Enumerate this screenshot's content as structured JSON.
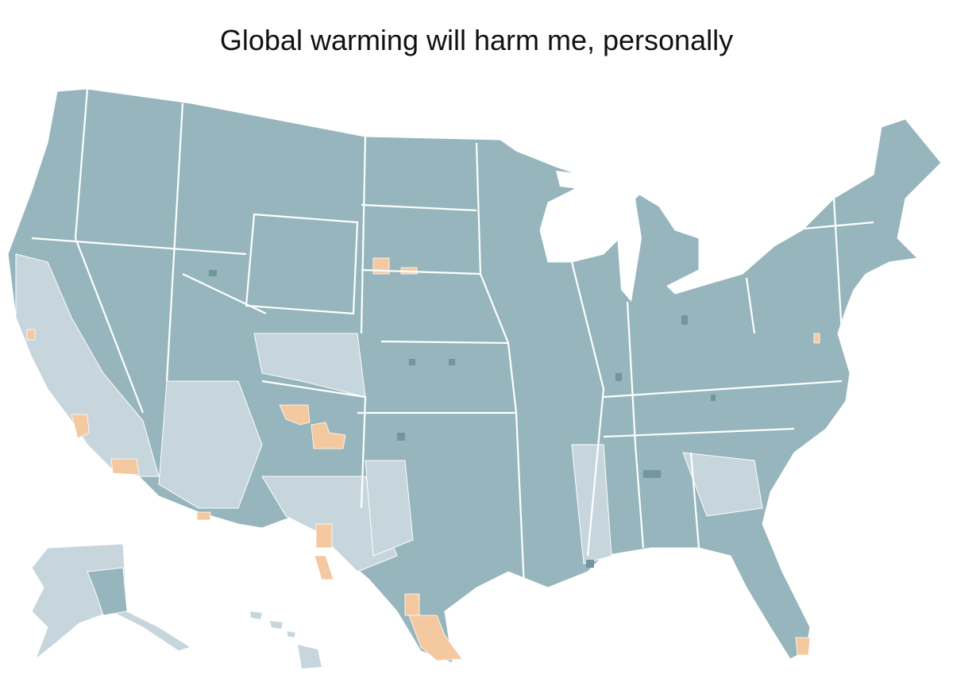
{
  "title": "Global warming will harm me, personally",
  "colors": {
    "majority_agree": "#96b5bc",
    "strong_agree": "#6f979d",
    "mixed": "#c6d6dc",
    "majority_disagree": "#f5c9a0",
    "border": "#ffffff"
  }
}
